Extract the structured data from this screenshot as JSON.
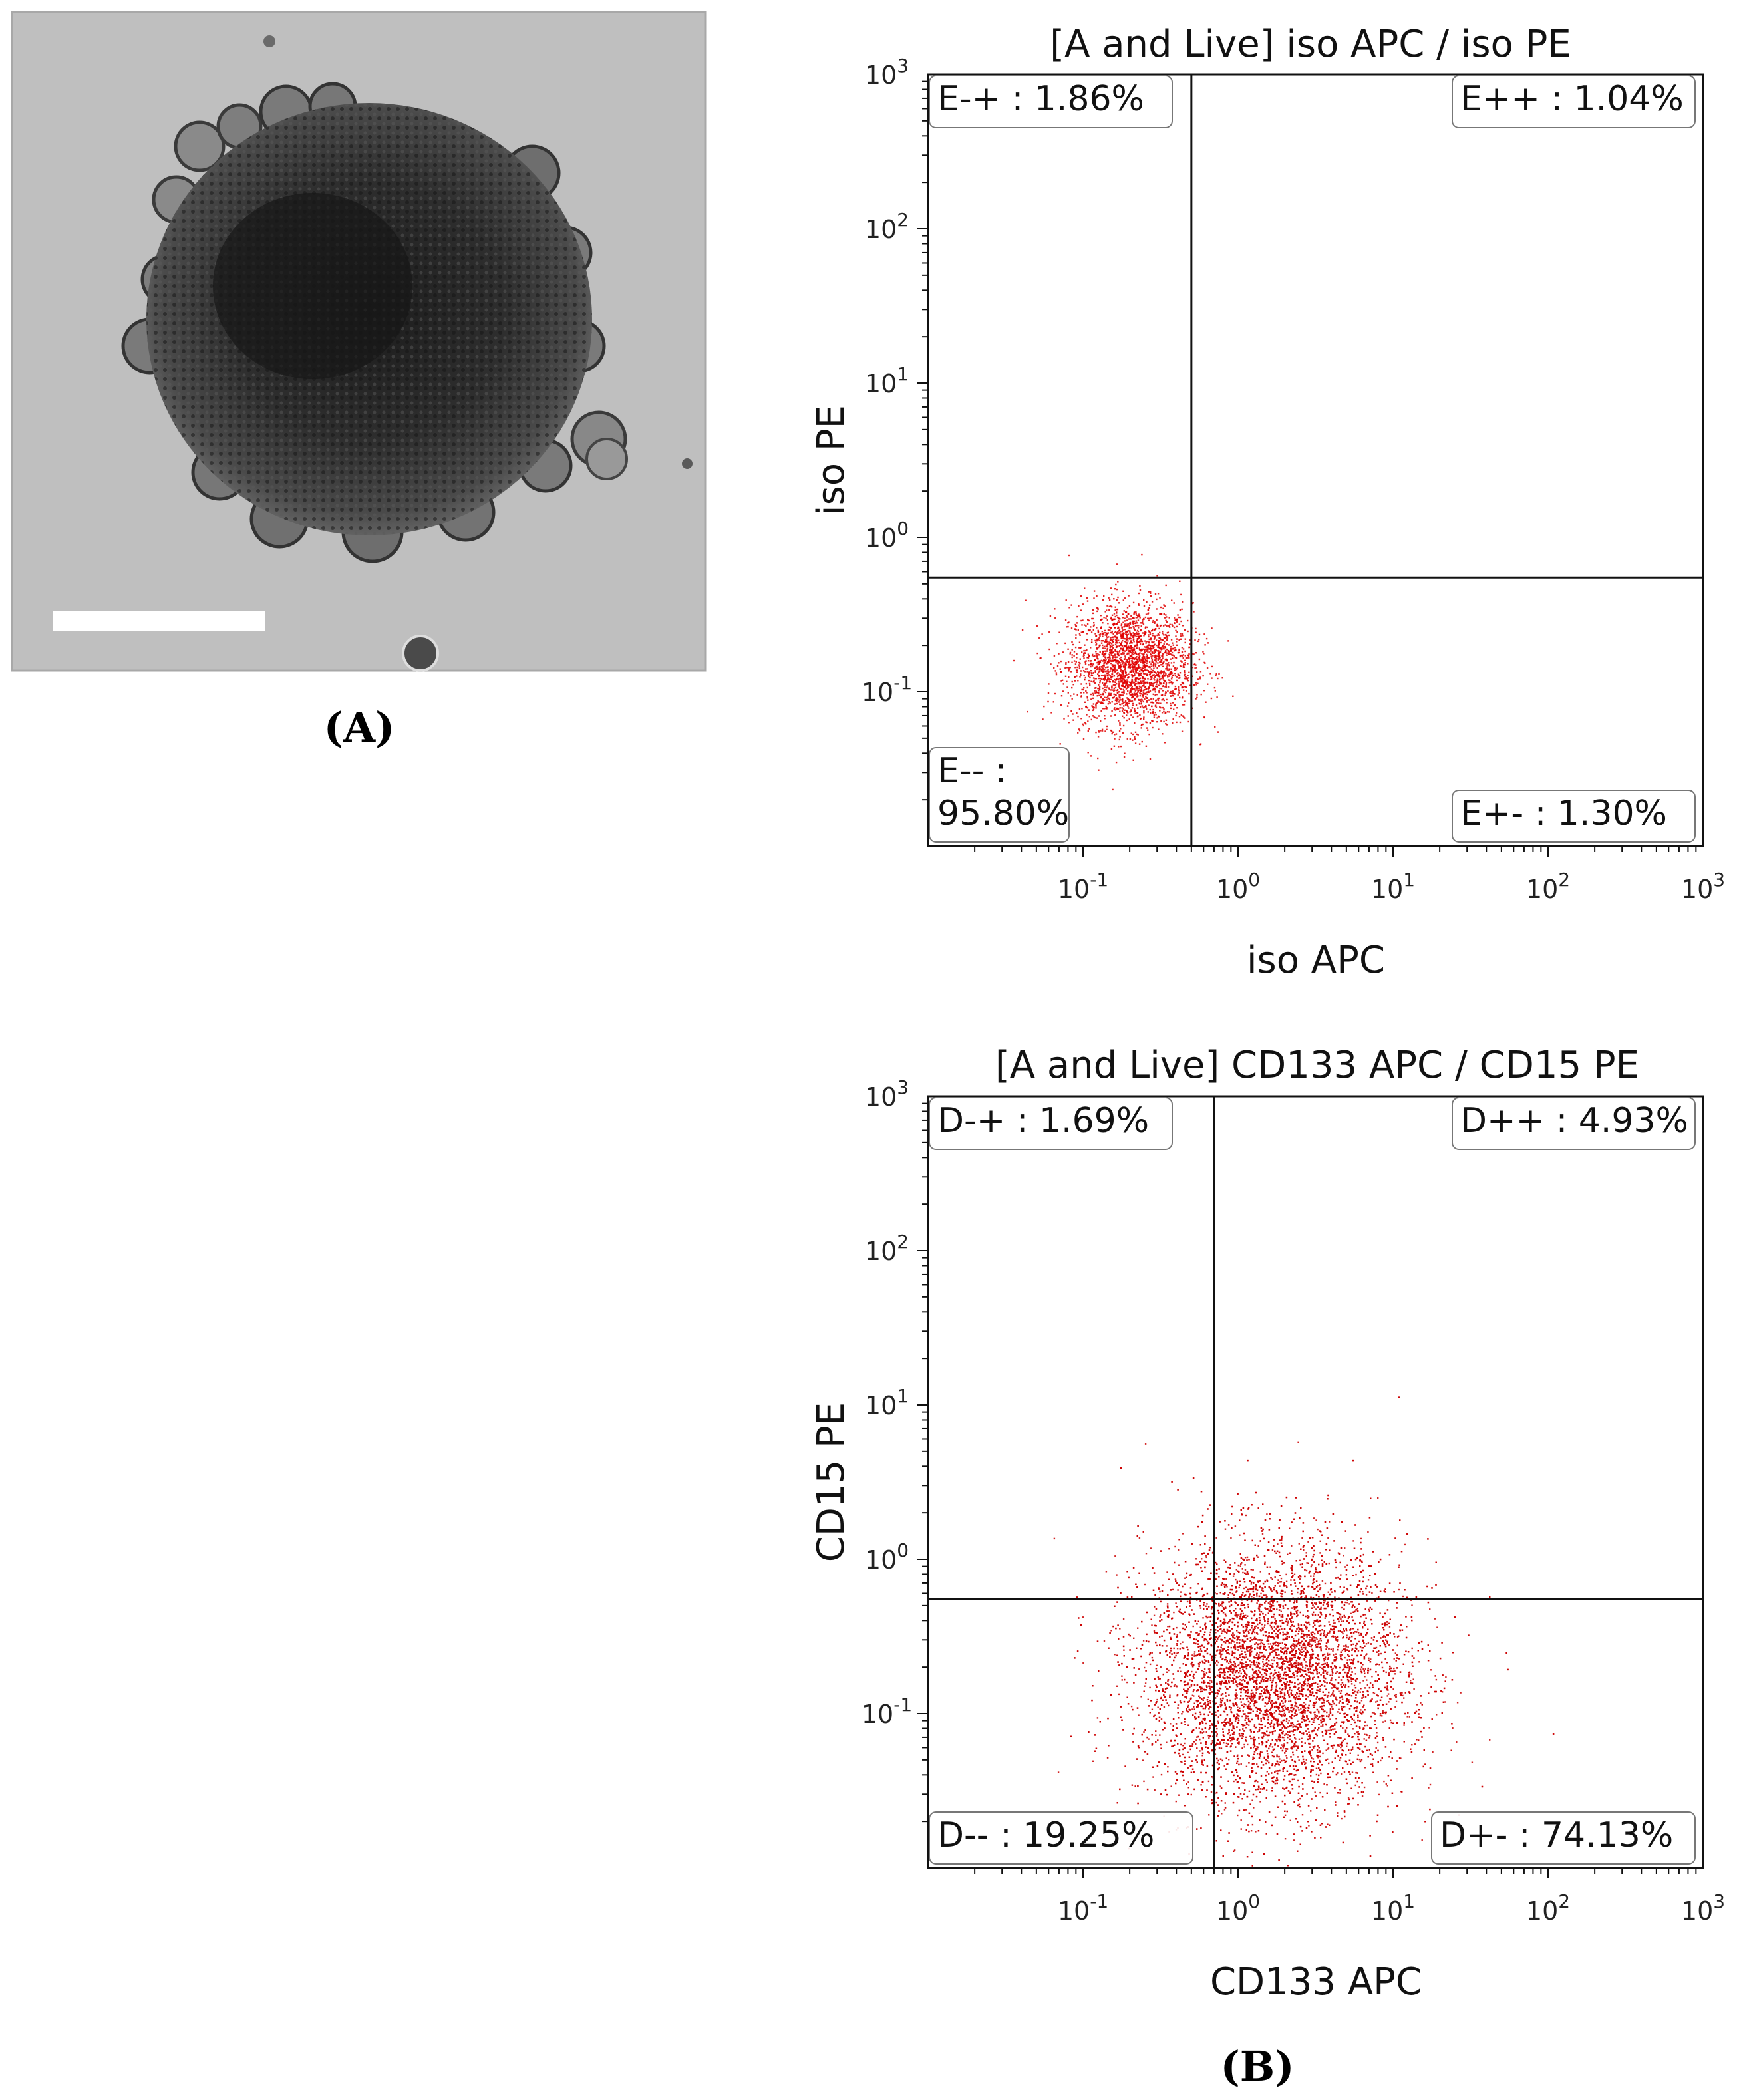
{
  "panels": {
    "a_label": "(A)",
    "b_label": "(B)"
  },
  "micrograph": {
    "colors": {
      "background": "#bdbdbd",
      "cell": "#2e2e2e",
      "scale_bar": "#ffffff"
    }
  },
  "chart_data": [
    {
      "type": "scatter",
      "title": "[A and Live] iso APC / iso PE",
      "xlabel": "iso APC",
      "ylabel": "iso PE",
      "x_scale": "log",
      "y_scale": "log",
      "xlim": [
        0.01,
        1000
      ],
      "ylim": [
        0.01,
        1000
      ],
      "x_ticks": [
        0.1,
        1,
        10,
        100,
        1000
      ],
      "y_ticks": [
        0.1,
        1,
        10,
        100,
        1000
      ],
      "gate": {
        "x": 0.5,
        "y": 0.55
      },
      "quadrants": [
        {
          "key": "E-+",
          "text": "E-+ : 1.86%",
          "percent": 1.86,
          "position": "top-left"
        },
        {
          "key": "E++",
          "text": "E++ : 1.04%",
          "percent": 1.04,
          "position": "top-right"
        },
        {
          "key": "E--",
          "text_line1": "E-- :",
          "text_line2": "95.80%",
          "percent": 95.8,
          "position": "bottom-left"
        },
        {
          "key": "E+-",
          "text": "E+- : 1.30%",
          "percent": 1.3,
          "position": "bottom-right"
        }
      ],
      "population": {
        "center_x": 0.2,
        "center_y": 0.15,
        "spread_log10": 0.2,
        "n_points": 2600
      },
      "color": "#e00000"
    },
    {
      "type": "scatter",
      "title": "[A and Live] CD133 APC / CD15 PE",
      "xlabel": "CD133 APC",
      "ylabel": "CD15 PE",
      "x_scale": "log",
      "y_scale": "log",
      "xlim": [
        0.01,
        1000
      ],
      "ylim": [
        0.01,
        1000
      ],
      "x_ticks": [
        0.1,
        1,
        10,
        100,
        1000
      ],
      "y_ticks": [
        0.1,
        1,
        10,
        100,
        1000
      ],
      "gate": {
        "x": 0.7,
        "y": 0.55
      },
      "quadrants": [
        {
          "key": "D-+",
          "text": "D-+ : 1.69%",
          "percent": 1.69,
          "position": "top-left"
        },
        {
          "key": "D++",
          "text": "D++ : 4.93%",
          "percent": 4.93,
          "position": "top-right"
        },
        {
          "key": "D--",
          "text": "D-- : 19.25%",
          "percent": 19.25,
          "position": "bottom-left"
        },
        {
          "key": "D+-",
          "text": "D+- : 74.13%",
          "percent": 74.13,
          "position": "bottom-right"
        }
      ],
      "population": {
        "center_x": 1.7,
        "center_y": 0.18,
        "spread_log10": 0.42,
        "n_points": 9000
      },
      "color": "#cc0000"
    }
  ]
}
